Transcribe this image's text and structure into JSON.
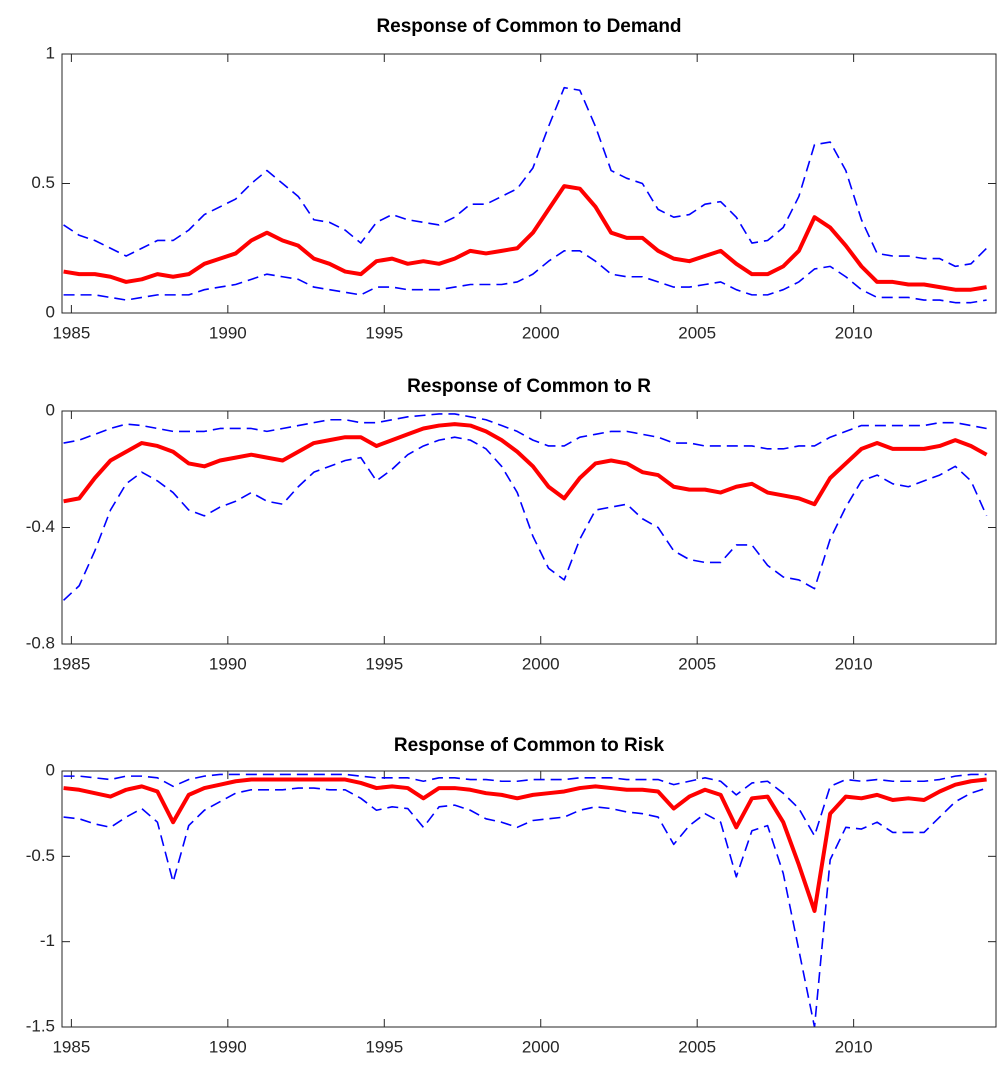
{
  "chart_data": [
    {
      "type": "line",
      "title": "Response of Common to Demand",
      "grid": false,
      "xlim": [
        1984.7,
        2014.55
      ],
      "xticks": [
        1985,
        1990,
        1995,
        2000,
        2005,
        2010
      ],
      "ylim": [
        0,
        1
      ],
      "yticks": [
        0,
        0.5,
        1
      ],
      "x": [
        1984.75,
        1985.25,
        1985.75,
        1986.25,
        1986.75,
        1987.25,
        1987.75,
        1988.25,
        1988.75,
        1989.25,
        1989.75,
        1990.25,
        1990.75,
        1991.25,
        1991.75,
        1992.25,
        1992.75,
        1993.25,
        1993.75,
        1994.25,
        1994.75,
        1995.25,
        1995.75,
        1996.25,
        1996.75,
        1997.25,
        1997.75,
        1998.25,
        1998.75,
        1999.25,
        1999.75,
        2000.25,
        2000.75,
        2001.25,
        2001.75,
        2002.25,
        2002.75,
        2003.25,
        2003.75,
        2004.25,
        2004.75,
        2005.25,
        2005.75,
        2006.25,
        2006.75,
        2007.25,
        2007.75,
        2008.25,
        2008.75,
        2009.25,
        2009.75,
        2010.25,
        2010.75,
        2011.25,
        2011.75,
        2012.25,
        2012.75,
        2013.25,
        2013.75,
        2014.25
      ],
      "series": [
        {
          "color": "#0000ff",
          "dash": true,
          "values": [
            0.34,
            0.3,
            0.28,
            0.25,
            0.22,
            0.25,
            0.28,
            0.28,
            0.32,
            0.38,
            0.41,
            0.44,
            0.5,
            0.55,
            0.5,
            0.45,
            0.36,
            0.35,
            0.32,
            0.27,
            0.35,
            0.38,
            0.36,
            0.35,
            0.34,
            0.37,
            0.42,
            0.42,
            0.45,
            0.48,
            0.56,
            0.72,
            0.87,
            0.86,
            0.72,
            0.55,
            0.52,
            0.5,
            0.4,
            0.37,
            0.38,
            0.42,
            0.43,
            0.37,
            0.27,
            0.28,
            0.33,
            0.45,
            0.65,
            0.66,
            0.55,
            0.36,
            0.23,
            0.22,
            0.22,
            0.21,
            0.21,
            0.18,
            0.19,
            0.25
          ]
        },
        {
          "color": "#0000ff",
          "dash": true,
          "values": [
            0.07,
            0.07,
            0.07,
            0.06,
            0.05,
            0.06,
            0.07,
            0.07,
            0.07,
            0.09,
            0.1,
            0.11,
            0.13,
            0.15,
            0.14,
            0.13,
            0.1,
            0.09,
            0.08,
            0.07,
            0.1,
            0.1,
            0.09,
            0.09,
            0.09,
            0.1,
            0.11,
            0.11,
            0.11,
            0.12,
            0.15,
            0.2,
            0.24,
            0.24,
            0.2,
            0.15,
            0.14,
            0.14,
            0.12,
            0.1,
            0.1,
            0.11,
            0.12,
            0.09,
            0.07,
            0.07,
            0.09,
            0.12,
            0.17,
            0.18,
            0.14,
            0.09,
            0.06,
            0.06,
            0.06,
            0.05,
            0.05,
            0.04,
            0.04,
            0.05
          ]
        },
        {
          "color": "#ff0000",
          "dash": false,
          "values": [
            0.16,
            0.15,
            0.15,
            0.14,
            0.12,
            0.13,
            0.15,
            0.14,
            0.15,
            0.19,
            0.21,
            0.23,
            0.28,
            0.31,
            0.28,
            0.26,
            0.21,
            0.19,
            0.16,
            0.15,
            0.2,
            0.21,
            0.19,
            0.2,
            0.19,
            0.21,
            0.24,
            0.23,
            0.24,
            0.25,
            0.31,
            0.4,
            0.49,
            0.48,
            0.41,
            0.31,
            0.29,
            0.29,
            0.24,
            0.21,
            0.2,
            0.22,
            0.24,
            0.19,
            0.15,
            0.15,
            0.18,
            0.24,
            0.37,
            0.33,
            0.26,
            0.18,
            0.12,
            0.12,
            0.11,
            0.11,
            0.1,
            0.09,
            0.09,
            0.1
          ]
        }
      ]
    },
    {
      "type": "line",
      "title": "Response of Common to R",
      "grid": false,
      "xlim": [
        1984.7,
        2014.55
      ],
      "xticks": [
        1985,
        1990,
        1995,
        2000,
        2005,
        2010
      ],
      "ylim": [
        -0.8,
        0
      ],
      "yticks": [
        0,
        -0.4,
        -0.8
      ],
      "x": [
        1984.75,
        1985.25,
        1985.75,
        1986.25,
        1986.75,
        1987.25,
        1987.75,
        1988.25,
        1988.75,
        1989.25,
        1989.75,
        1990.25,
        1990.75,
        1991.25,
        1991.75,
        1992.25,
        1992.75,
        1993.25,
        1993.75,
        1994.25,
        1994.75,
        1995.25,
        1995.75,
        1996.25,
        1996.75,
        1997.25,
        1997.75,
        1998.25,
        1998.75,
        1999.25,
        1999.75,
        2000.25,
        2000.75,
        2001.25,
        2001.75,
        2002.25,
        2002.75,
        2003.25,
        2003.75,
        2004.25,
        2004.75,
        2005.25,
        2005.75,
        2006.25,
        2006.75,
        2007.25,
        2007.75,
        2008.25,
        2008.75,
        2009.25,
        2009.75,
        2010.25,
        2010.75,
        2011.25,
        2011.75,
        2012.25,
        2012.75,
        2013.25,
        2013.75,
        2014.25
      ],
      "series": [
        {
          "color": "#0000ff",
          "dash": true,
          "values": [
            -0.11,
            -0.1,
            -0.08,
            -0.06,
            -0.045,
            -0.05,
            -0.06,
            -0.07,
            -0.07,
            -0.07,
            -0.06,
            -0.06,
            -0.06,
            -0.07,
            -0.06,
            -0.05,
            -0.04,
            -0.03,
            -0.03,
            -0.04,
            -0.04,
            -0.03,
            -0.02,
            -0.015,
            -0.01,
            -0.01,
            -0.02,
            -0.03,
            -0.05,
            -0.07,
            -0.1,
            -0.12,
            -0.12,
            -0.09,
            -0.08,
            -0.07,
            -0.07,
            -0.08,
            -0.09,
            -0.11,
            -0.11,
            -0.12,
            -0.12,
            -0.12,
            -0.12,
            -0.13,
            -0.13,
            -0.12,
            -0.12,
            -0.09,
            -0.07,
            -0.05,
            -0.05,
            -0.05,
            -0.05,
            -0.05,
            -0.04,
            -0.04,
            -0.05,
            -0.06
          ]
        },
        {
          "color": "#0000ff",
          "dash": true,
          "values": [
            -0.65,
            -0.6,
            -0.48,
            -0.34,
            -0.25,
            -0.21,
            -0.24,
            -0.28,
            -0.34,
            -0.36,
            -0.33,
            -0.31,
            -0.28,
            -0.31,
            -0.32,
            -0.26,
            -0.21,
            -0.19,
            -0.17,
            -0.16,
            -0.24,
            -0.2,
            -0.15,
            -0.12,
            -0.1,
            -0.09,
            -0.1,
            -0.13,
            -0.19,
            -0.28,
            -0.43,
            -0.54,
            -0.58,
            -0.44,
            -0.34,
            -0.33,
            -0.32,
            -0.37,
            -0.4,
            -0.48,
            -0.51,
            -0.52,
            -0.52,
            -0.46,
            -0.46,
            -0.53,
            -0.57,
            -0.58,
            -0.61,
            -0.44,
            -0.33,
            -0.24,
            -0.22,
            -0.25,
            -0.26,
            -0.24,
            -0.22,
            -0.19,
            -0.24,
            -0.36
          ]
        },
        {
          "color": "#ff0000",
          "dash": false,
          "values": [
            -0.31,
            -0.3,
            -0.23,
            -0.17,
            -0.14,
            -0.11,
            -0.12,
            -0.14,
            -0.18,
            -0.19,
            -0.17,
            -0.16,
            -0.15,
            -0.16,
            -0.17,
            -0.14,
            -0.11,
            -0.1,
            -0.09,
            -0.09,
            -0.12,
            -0.1,
            -0.08,
            -0.06,
            -0.05,
            -0.045,
            -0.05,
            -0.07,
            -0.1,
            -0.14,
            -0.19,
            -0.26,
            -0.3,
            -0.23,
            -0.18,
            -0.17,
            -0.18,
            -0.21,
            -0.22,
            -0.26,
            -0.27,
            -0.27,
            -0.28,
            -0.26,
            -0.25,
            -0.28,
            -0.29,
            -0.3,
            -0.32,
            -0.23,
            -0.18,
            -0.13,
            -0.11,
            -0.13,
            -0.13,
            -0.13,
            -0.12,
            -0.1,
            -0.12,
            -0.15
          ]
        }
      ]
    },
    {
      "type": "line",
      "title": "Response of Common to Risk",
      "grid": false,
      "xlim": [
        1984.7,
        2014.55
      ],
      "xticks": [
        1985,
        1990,
        1995,
        2000,
        2005,
        2010
      ],
      "ylim": [
        -1.5,
        0
      ],
      "yticks": [
        0,
        -0.5,
        -1,
        -1.5
      ],
      "x": [
        1984.75,
        1985.25,
        1985.75,
        1986.25,
        1986.75,
        1987.25,
        1987.75,
        1988.25,
        1988.75,
        1989.25,
        1989.75,
        1990.25,
        1990.75,
        1991.25,
        1991.75,
        1992.25,
        1992.75,
        1993.25,
        1993.75,
        1994.25,
        1994.75,
        1995.25,
        1995.75,
        1996.25,
        1996.75,
        1997.25,
        1997.75,
        1998.25,
        1998.75,
        1999.25,
        1999.75,
        2000.25,
        2000.75,
        2001.25,
        2001.75,
        2002.25,
        2002.75,
        2003.25,
        2003.75,
        2004.25,
        2004.75,
        2005.25,
        2005.75,
        2006.25,
        2006.75,
        2007.25,
        2007.75,
        2008.25,
        2008.75,
        2009.25,
        2009.75,
        2010.25,
        2010.75,
        2011.25,
        2011.75,
        2012.25,
        2012.75,
        2013.25,
        2013.75,
        2014.25
      ],
      "series": [
        {
          "color": "#0000ff",
          "dash": true,
          "values": [
            -0.03,
            -0.03,
            -0.04,
            -0.05,
            -0.03,
            -0.03,
            -0.04,
            -0.09,
            -0.05,
            -0.03,
            -0.02,
            -0.02,
            -0.02,
            -0.02,
            -0.02,
            -0.02,
            -0.02,
            -0.02,
            -0.02,
            -0.03,
            -0.04,
            -0.04,
            -0.04,
            -0.06,
            -0.04,
            -0.04,
            -0.05,
            -0.05,
            -0.06,
            -0.06,
            -0.05,
            -0.05,
            -0.05,
            -0.04,
            -0.04,
            -0.04,
            -0.05,
            -0.05,
            -0.05,
            -0.08,
            -0.06,
            -0.04,
            -0.06,
            -0.14,
            -0.07,
            -0.06,
            -0.13,
            -0.22,
            -0.38,
            -0.09,
            -0.05,
            -0.06,
            -0.05,
            -0.06,
            -0.06,
            -0.06,
            -0.05,
            -0.03,
            -0.02,
            -0.02
          ]
        },
        {
          "color": "#0000ff",
          "dash": true,
          "values": [
            -0.27,
            -0.28,
            -0.31,
            -0.33,
            -0.27,
            -0.22,
            -0.3,
            -0.65,
            -0.32,
            -0.23,
            -0.18,
            -0.13,
            -0.11,
            -0.11,
            -0.11,
            -0.1,
            -0.1,
            -0.11,
            -0.11,
            -0.16,
            -0.23,
            -0.21,
            -0.22,
            -0.33,
            -0.21,
            -0.2,
            -0.23,
            -0.28,
            -0.3,
            -0.33,
            -0.29,
            -0.28,
            -0.27,
            -0.23,
            -0.21,
            -0.22,
            -0.24,
            -0.25,
            -0.27,
            -0.43,
            -0.32,
            -0.25,
            -0.3,
            -0.62,
            -0.35,
            -0.32,
            -0.6,
            -1.05,
            -1.5,
            -0.52,
            -0.33,
            -0.34,
            -0.3,
            -0.36,
            -0.36,
            -0.36,
            -0.27,
            -0.18,
            -0.13,
            -0.1
          ]
        },
        {
          "color": "#ff0000",
          "dash": false,
          "values": [
            -0.1,
            -0.11,
            -0.13,
            -0.15,
            -0.11,
            -0.09,
            -0.12,
            -0.3,
            -0.14,
            -0.1,
            -0.08,
            -0.06,
            -0.05,
            -0.05,
            -0.05,
            -0.05,
            -0.05,
            -0.05,
            -0.05,
            -0.07,
            -0.1,
            -0.09,
            -0.1,
            -0.16,
            -0.1,
            -0.1,
            -0.11,
            -0.13,
            -0.14,
            -0.16,
            -0.14,
            -0.13,
            -0.12,
            -0.1,
            -0.09,
            -0.1,
            -0.11,
            -0.11,
            -0.12,
            -0.22,
            -0.15,
            -0.11,
            -0.14,
            -0.33,
            -0.16,
            -0.15,
            -0.3,
            -0.55,
            -0.82,
            -0.25,
            -0.15,
            -0.16,
            -0.14,
            -0.17,
            -0.16,
            -0.17,
            -0.12,
            -0.08,
            -0.06,
            -0.05
          ]
        }
      ]
    }
  ]
}
